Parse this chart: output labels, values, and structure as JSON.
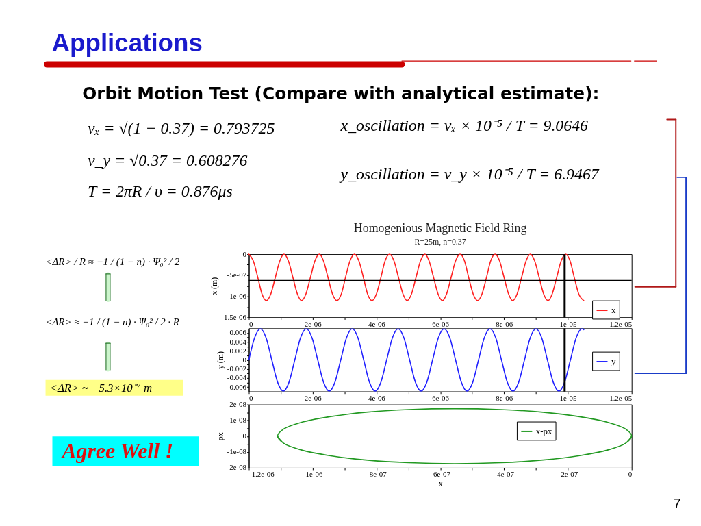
{
  "chart_data": [
    {
      "type": "other",
      "title": "Applications",
      "annotations": [
        "Orbit Motion Test (Compare with analytical estimate):",
        "νₓ = √(1 − 0.37) = 0.793725",
        "ν_y = √0.37 = 0.608276",
        "T = 2πR / υ = 0.876μs",
        "x_oscillation = νₓ × 10⁻⁵ / T = 9.0646",
        "y_oscillation = ν_y × 10⁻⁵ / T = 6.9467",
        "<ΔR> / R ≈ −1 / (1 − n) · Ψ₀² / 2",
        "<ΔR> ≈ −1 / (1 − n) · Ψ₀² / 2 · R",
        "<ΔR> ~ −5.3×10⁻⁷ m",
        "Agree Well !",
        "7"
      ]
    },
    {
      "type": "line",
      "title": "Homogenious Magnetic Field Ring",
      "subtitle": "R=25m, n=0.37",
      "ylabel": "x (m)",
      "x": [
        0,
        1.4e-07,
        2.8e-07,
        4.1e-07,
        5.5e-07,
        6.9e-07,
        8.3e-07,
        9.7e-07,
        1.1e-06,
        1.24e-06,
        1.38e-06,
        1.52e-06,
        1.65e-06,
        1.79e-06,
        1.93e-06,
        2.07e-06,
        2.21e-06,
        2.34e-06,
        2.48e-06,
        2.62e-06,
        2.76e-06,
        2.9e-06,
        3.03e-06,
        3.17e-06,
        3.31e-06,
        3.45e-06,
        3.59e-06,
        3.72e-06,
        3.86e-06,
        4e-06,
        4.14e-06,
        4.27e-06,
        4.41e-06,
        4.55e-06,
        4.69e-06,
        4.83e-06,
        4.96e-06,
        5.1e-06,
        5.24e-06,
        5.38e-06,
        5.52e-06,
        5.65e-06,
        5.79e-06,
        5.93e-06,
        6.07e-06,
        6.2e-06,
        6.34e-06,
        6.48e-06,
        6.62e-06,
        6.76e-06,
        6.89e-06,
        7.03e-06,
        7.17e-06,
        7.31e-06,
        7.45e-06,
        7.58e-06,
        7.72e-06,
        7.86e-06,
        8e-06,
        8.14e-06,
        8.27e-06,
        8.41e-06,
        8.55e-06,
        8.69e-06,
        8.82e-06,
        8.96e-06,
        9.1e-06,
        9.24e-06,
        9.38e-06,
        9.51e-06,
        9.65e-06,
        9.79e-06,
        9.93e-06,
        1.007e-05,
        1.02e-05,
        1.034e-05,
        1.05e-05
      ],
      "series": [
        {
          "name": "x",
          "color": "#ff2020",
          "values": [
            0,
            -1.6e-07,
            -5.5e-07,
            -9.4e-07,
            -1.1e-06,
            -9.4e-07,
            -5.5e-07,
            -1.6e-07,
            0,
            -1.6e-07,
            -5.5e-07,
            -9.4e-07,
            -1.1e-06,
            -9.4e-07,
            -5.5e-07,
            -1.6e-07,
            0,
            -1.6e-07,
            -5.5e-07,
            -9.4e-07,
            -1.1e-06,
            -9.4e-07,
            -5.5e-07,
            -1.6e-07,
            0,
            -1.6e-07,
            -5.5e-07,
            -9.4e-07,
            -1.1e-06,
            -9.4e-07,
            -5.5e-07,
            -1.6e-07,
            0,
            -1.6e-07,
            -5.5e-07,
            -9.4e-07,
            -1.1e-06,
            -9.4e-07,
            -5.5e-07,
            -1.6e-07,
            0,
            -1.6e-07,
            -5.5e-07,
            -9.4e-07,
            -1.1e-06,
            -9.4e-07,
            -5.5e-07,
            -1.6e-07,
            0,
            -1.6e-07,
            -5.5e-07,
            -9.4e-07,
            -1.1e-06,
            -9.4e-07,
            -5.5e-07,
            -1.6e-07,
            0,
            -1.6e-07,
            -5.5e-07,
            -9.4e-07,
            -1.1e-06,
            -9.4e-07,
            -5.5e-07,
            -1.6e-07,
            0,
            -1.6e-07,
            -5.5e-07,
            -9.4e-07,
            -1.1e-06,
            -9.4e-07,
            -5.5e-07,
            -1.6e-07,
            0,
            -1.6e-07,
            -5.5e-07,
            -9.4e-07,
            -1.1e-06
          ]
        }
      ],
      "xlim": [
        0,
        1.2e-05
      ],
      "ylim": [
        -1.5e-06,
        0
      ],
      "xticks": [
        0,
        {
          "value": 1e-06,
          "label": null
        },
        {
          "value": 2e-06,
          "label": "2e-06"
        },
        {
          "value": 3e-06,
          "label": null
        },
        {
          "value": 4e-06,
          "label": "4e-06"
        },
        {
          "value": 5e-06,
          "label": null
        },
        {
          "value": 6e-06,
          "label": "6e-06"
        },
        {
          "value": 7e-06,
          "label": null
        },
        {
          "value": 8e-06,
          "label": "8e-06"
        },
        {
          "value": 9e-06,
          "label": null
        },
        {
          "value": 1e-05,
          "label": "1e-05"
        },
        {
          "value": 1.1e-05,
          "label": null
        },
        {
          "value": 1.2e-05,
          "label": "1.2e-05"
        }
      ],
      "yticks": [
        {
          "value": -1.5e-06,
          "label": "-1.5e-06"
        },
        {
          "value": -1.25e-06,
          "label": null
        },
        {
          "value": -1e-06,
          "label": "-1e-06"
        },
        {
          "value": -7.5e-07,
          "label": null
        },
        {
          "value": -5e-07,
          "label": "-5e-07"
        },
        {
          "value": -2.5e-07,
          "label": null
        },
        0
      ],
      "legend": "bottom right",
      "ref_lines": [
        {
          "axis": "x",
          "value": 9.9e-06,
          "color": "#000000"
        },
        {
          "axis": "y",
          "value": -6.2e-07,
          "color": "#000000"
        }
      ]
    },
    {
      "type": "line",
      "ylabel": "y (m)",
      "x": [
        0,
        1.8e-07,
        3.6e-07,
        5.4e-07,
        7.2e-07,
        9e-07,
        1.08e-06,
        1.26e-06,
        1.44e-06,
        1.62e-06,
        1.8e-06,
        1.98e-06,
        2.16e-06,
        2.34e-06,
        2.52e-06,
        2.7e-06,
        2.88e-06,
        3.06e-06,
        3.24e-06,
        3.42e-06,
        3.6e-06,
        3.78e-06,
        3.96e-06,
        4.14e-06,
        4.32e-06,
        4.5e-06,
        4.68e-06,
        4.86e-06,
        5.04e-06,
        5.22e-06,
        5.4e-06,
        5.58e-06,
        5.76e-06,
        5.94e-06,
        6.12e-06,
        6.3e-06,
        6.48e-06,
        6.66e-06,
        6.84e-06,
        7.02e-06,
        7.2e-06,
        7.38e-06,
        7.56e-06,
        7.74e-06,
        7.92e-06,
        8.1e-06,
        8.28e-06,
        8.46e-06,
        8.64e-06,
        8.82e-06,
        9e-06,
        9.18e-06,
        9.36e-06,
        9.54e-06,
        9.72e-06,
        9.9e-06,
        1.008e-05,
        1.026e-05,
        1.044e-05,
        1.05e-05
      ],
      "series": [
        {
          "name": "y",
          "color": "#2020ff",
          "values": [
            0,
            0.0049,
            0.0069,
            0.0049,
            0,
            -0.0049,
            -0.0069,
            -0.0049,
            0,
            0.0049,
            0.0069,
            0.0049,
            0,
            -0.0049,
            -0.0069,
            -0.0049,
            0,
            0.0049,
            0.0069,
            0.0049,
            0,
            -0.0049,
            -0.0069,
            -0.0049,
            0,
            0.0049,
            0.0069,
            0.0049,
            0,
            -0.0049,
            -0.0069,
            -0.0049,
            0,
            0.0049,
            0.0069,
            0.0049,
            0,
            -0.0049,
            -0.0069,
            -0.0049,
            0,
            0.0049,
            0.0069,
            0.0049,
            0,
            -0.0049,
            -0.0069,
            -0.0049,
            0,
            0.0049,
            0.0069,
            0.0049,
            0,
            -0.0049,
            -0.0069,
            -0.0049,
            0,
            0.0049,
            0.0069,
            0.0067
          ]
        }
      ],
      "xlim": [
        0,
        1.2e-05
      ],
      "ylim": [
        -0.007,
        0.007
      ],
      "xticks": [
        0,
        {
          "value": 1e-06,
          "label": null
        },
        {
          "value": 2e-06,
          "label": "2e-06"
        },
        {
          "value": 3e-06,
          "label": null
        },
        {
          "value": 4e-06,
          "label": "4e-06"
        },
        {
          "value": 5e-06,
          "label": null
        },
        {
          "value": 6e-06,
          "label": "6e-06"
        },
        {
          "value": 7e-06,
          "label": null
        },
        {
          "value": 8e-06,
          "label": "8e-06"
        },
        {
          "value": 9e-06,
          "label": null
        },
        {
          "value": 1e-05,
          "label": "1e-05"
        },
        {
          "value": 1.1e-05,
          "label": null
        },
        {
          "value": 1.2e-05,
          "label": "1.2e-05"
        }
      ],
      "yticks": [
        -0.006,
        {
          "value": -0.005,
          "label": null
        },
        -0.004,
        {
          "value": -0.003,
          "label": null
        },
        -0.002,
        {
          "value": -0.001,
          "label": null
        },
        0,
        {
          "value": 0.001,
          "label": null
        },
        0.002,
        {
          "value": 0.003,
          "label": null
        },
        0.004,
        {
          "value": 0.005,
          "label": null
        },
        0.006
      ],
      "legend": "right",
      "ref_lines": [
        {
          "axis": "x",
          "value": 9.9e-06,
          "color": "#000000"
        }
      ]
    },
    {
      "type": "line",
      "xlabel": "x",
      "ylabel": "px",
      "x": [
        0,
        -1.9e-08,
        -7.4e-08,
        -1.63e-07,
        -2.78e-07,
        -4.11e-07,
        -5.55e-07,
        -6.99e-07,
        -8.33e-07,
        -9.47e-07,
        -1.036e-06,
        -1.091e-06,
        -1.11e-06,
        -1.091e-06,
        -1.036e-06,
        -9.47e-07,
        -8.33e-07,
        -6.99e-07,
        -5.55e-07,
        -4.11e-07,
        -2.78e-07,
        -1.63e-07,
        -7.4e-08,
        -1.9e-08,
        0,
        -1.9e-08,
        -7.4e-08,
        -1.63e-07,
        -2.78e-07,
        -4.11e-07,
        -5.55e-07,
        -6.99e-07,
        -8.33e-07,
        -9.47e-07,
        -1.036e-06,
        -1.091e-06,
        -1.11e-06
      ],
      "series": [
        {
          "name": "x-px",
          "color": "#229922",
          "values": [
            0,
            -4.5e-09,
            -8.7e-09,
            -1.23e-08,
            -1.51e-08,
            -1.68e-08,
            -1.74e-08,
            -1.68e-08,
            -1.51e-08,
            -1.23e-08,
            -8.7e-09,
            -4.5e-09,
            0,
            4.5e-09,
            8.7e-09,
            1.23e-08,
            1.51e-08,
            1.68e-08,
            1.74e-08,
            1.68e-08,
            1.51e-08,
            1.23e-08,
            8.7e-09,
            4.5e-09,
            0,
            -4.5e-09,
            -8.7e-09,
            -1.23e-08,
            -1.51e-08,
            -1.68e-08,
            -1.74e-08,
            -1.68e-08,
            -1.51e-08,
            -1.23e-08,
            -8.7e-09,
            -4.5e-09,
            0
          ]
        }
      ],
      "xlim": [
        -1.2e-06,
        0
      ],
      "ylim": [
        -2e-08,
        2e-08
      ],
      "xticks": [
        {
          "value": -1.2e-06,
          "label": "-1.2e-06"
        },
        {
          "value": -1.1e-06,
          "label": null
        },
        {
          "value": -1e-06,
          "label": "-1e-06"
        },
        {
          "value": -9e-07,
          "label": null
        },
        {
          "value": -8e-07,
          "label": "-8e-07"
        },
        {
          "value": -7e-07,
          "label": null
        },
        {
          "value": -6e-07,
          "label": "-6e-07"
        },
        {
          "value": -5e-07,
          "label": null
        },
        {
          "value": -4e-07,
          "label": "-4e-07"
        },
        {
          "value": -3e-07,
          "label": null
        },
        {
          "value": -2e-07,
          "label": "-2e-07"
        },
        {
          "value": -1e-07,
          "label": null
        },
        0
      ],
      "yticks": [
        {
          "value": -2e-08,
          "label": "-2e-08"
        },
        {
          "value": -1.5e-08,
          "label": null
        },
        {
          "value": -1e-08,
          "label": "-1e-08"
        },
        {
          "value": -5e-09,
          "label": null
        },
        0,
        {
          "value": 5e-09,
          "label": null
        },
        {
          "value": 1e-08,
          "label": "1e-08"
        },
        {
          "value": 1.5e-08,
          "label": null
        },
        {
          "value": 2e-08,
          "label": "2e-08"
        }
      ],
      "legend": "top right"
    }
  ]
}
